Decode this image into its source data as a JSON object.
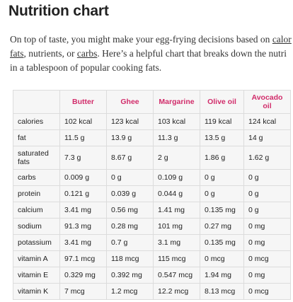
{
  "header": {
    "title": "Nutrition chart"
  },
  "intro": {
    "lines": [
      [
        {
          "text": "On top of taste, you might make your egg-frying decisions based on "
        },
        {
          "text": "calor",
          "link": true
        }
      ],
      [
        {
          "text": "fats",
          "link": true
        },
        {
          "text": ", nutrients, or "
        },
        {
          "text": "carbs",
          "link": true
        },
        {
          "text": ". Here’s a helpful chart that breaks down the nutri"
        }
      ],
      [
        {
          "text": "in a tablespoon of popular cooking fats."
        }
      ]
    ]
  },
  "table": {
    "columns": [
      "",
      "Butter",
      "Ghee",
      "Margarine",
      "Olive oil",
      "Avocado oil"
    ],
    "rows": [
      [
        "calories",
        "102 kcal",
        "123 kcal",
        "103 kcal",
        "119 kcal",
        "124 kcal"
      ],
      [
        "fat",
        "11.5 g",
        "13.9 g",
        "11.3 g",
        "13.5 g",
        "14 g"
      ],
      [
        "saturated fats",
        "7.3 g",
        "8.67 g",
        "2 g",
        "1.86 g",
        "1.62 g"
      ],
      [
        "carbs",
        "0.009 g",
        "0 g",
        "0.109 g",
        "0 g",
        "0 g"
      ],
      [
        "protein",
        "0.121 g",
        "0.039 g",
        "0.044 g",
        "0 g",
        "0 g"
      ],
      [
        "calcium",
        "3.41 mg",
        "0.56 mg",
        "1.41 mg",
        "0.135 mg",
        "0 g"
      ],
      [
        "sodium",
        "91.3 mg",
        "0.28 mg",
        "101 mg",
        "0.27 mg",
        "0 mg"
      ],
      [
        "potassium",
        "3.41 mg",
        "0.7 g",
        "3.1 mg",
        "0.135 mg",
        "0 mg"
      ],
      [
        "vitamin A",
        "97.1 mcg",
        "118 mcg",
        "115 mcg",
        "0 mcg",
        "0 mcg"
      ],
      [
        "vitamin E",
        "0.329 mg",
        "0.392 mg",
        "0.547 mcg",
        "1.94 mg",
        "0 mg"
      ],
      [
        "vitamin K",
        "7 mcg",
        "1.2 mcg",
        "12.2 mcg",
        "8.13 mcg",
        "0 mcg"
      ]
    ]
  }
}
